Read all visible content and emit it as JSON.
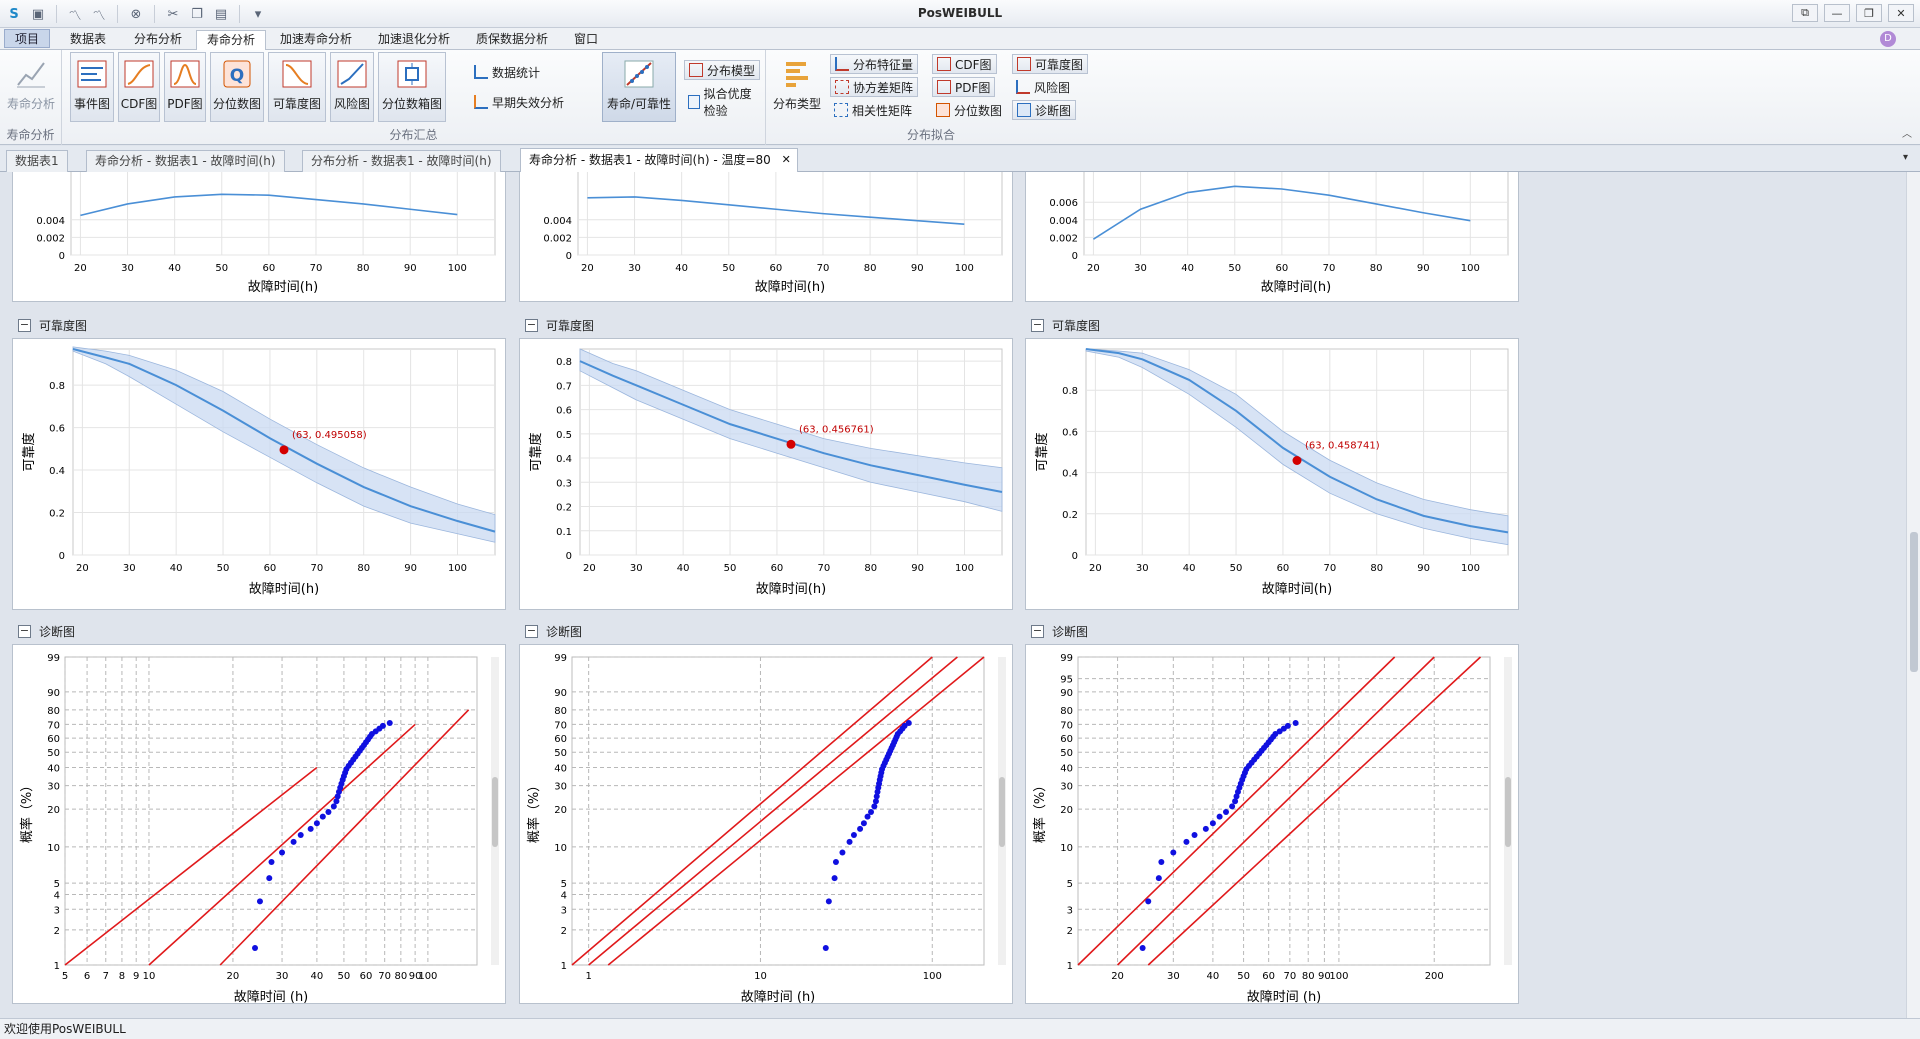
{
  "app": {
    "title": "PosWEIBULL"
  },
  "qat": {
    "icons": [
      "app-icon",
      "save-icon",
      "line-chart-icon",
      "line-chart2-icon",
      "cancel-icon",
      "cut-icon",
      "copy-icon",
      "paste-icon",
      "dropdown-icon"
    ]
  },
  "window": {
    "buttons": [
      "⧉",
      "—",
      "❐",
      "✕"
    ]
  },
  "menu": {
    "project": "项目",
    "tabs": [
      "数据表",
      "分布分析",
      "寿命分析",
      "加速寿命分析",
      "加速退化分析",
      "质保数据分析",
      "窗口"
    ]
  },
  "ribbon": {
    "groups": {
      "life": "寿命分析",
      "summary": "分布汇总",
      "fit": "分布拟合"
    },
    "life_btn": "寿命分析",
    "big_buttons": [
      "事件图",
      "CDF图",
      "PDF图",
      "分位数图",
      "可靠度图",
      "风险图",
      "分位数箱图"
    ],
    "data_stats": "数据统计",
    "early_failure": "早期失效分析",
    "life_reliability": "寿命/可靠性",
    "dist_model": "分布模型",
    "fit_test": "拟合优度检验",
    "dist_type": "分布类型",
    "dist_feature": "分布特征量",
    "cov_matrix": "协方差矩阵",
    "corr_matrix": "相关性矩阵",
    "cdf_plot": "CDF图",
    "pdf_plot": "PDF图",
    "quantile_plot": "分位数图",
    "reliability_plot": "可靠度图",
    "hazard_plot": "风险图",
    "diagnostic_plot": "诊断图"
  },
  "doc_tabs": [
    "数据表1",
    "寿命分析 - 数据表1 - 故障时间(h)",
    "分布分析 - 数据表1 - 故障时间(h)",
    "寿命分析 - 数据表1 - 故障时间(h) - 温度=80"
  ],
  "doc_close": "✕",
  "panels": {
    "reliability_title": "可靠度图",
    "diagnostic_title": "诊断图",
    "collapse": "−"
  },
  "axes": {
    "x_label": "故障时间(h)",
    "x_label_diag": "故障时间 (h)",
    "y_reliability": "可靠度",
    "y_prob": "概率（%）"
  },
  "chart_data": [
    {
      "type": "line",
      "panel": "pdf-col1",
      "x": [
        20,
        30,
        40,
        50,
        60,
        70,
        80,
        90,
        100
      ],
      "y_ticks": [
        "0",
        "0.002",
        "0.004"
      ],
      "series": [
        {
          "values": [
            0.0045,
            0.0058,
            0.0066,
            0.0069,
            0.0068,
            0.0063,
            0.0058,
            0.0052,
            0.0046
          ]
        }
      ],
      "xlim": [
        18,
        108
      ]
    },
    {
      "type": "line",
      "panel": "pdf-col2",
      "x": [
        20,
        30,
        40,
        50,
        60,
        70,
        80,
        90,
        100
      ],
      "y_ticks": [
        "0",
        "0.002",
        "0.004"
      ],
      "series": [
        {
          "values": [
            0.0065,
            0.0066,
            0.0062,
            0.0057,
            0.0052,
            0.0047,
            0.0043,
            0.0039,
            0.0035
          ]
        }
      ],
      "xlim": [
        18,
        108
      ]
    },
    {
      "type": "line",
      "panel": "pdf-col3",
      "x": [
        20,
        30,
        40,
        50,
        60,
        70,
        80,
        90,
        100
      ],
      "y_ticks": [
        "0",
        "0.002",
        "0.004",
        "0.006"
      ],
      "series": [
        {
          "values": [
            0.0018,
            0.0052,
            0.0071,
            0.0078,
            0.0075,
            0.0068,
            0.0058,
            0.0048,
            0.0039
          ]
        }
      ],
      "xlim": [
        18,
        108
      ]
    },
    {
      "type": "line",
      "panel": "rel-col1",
      "x": [
        18,
        25,
        30,
        40,
        50,
        60,
        70,
        80,
        90,
        100,
        108
      ],
      "y_ticks": [
        "0",
        "0.2",
        "0.4",
        "0.6",
        "0.8"
      ],
      "series": [
        {
          "values": [
            0.97,
            0.93,
            0.9,
            0.8,
            0.68,
            0.55,
            0.43,
            0.32,
            0.23,
            0.16,
            0.11
          ],
          "lower": [
            0.96,
            0.9,
            0.84,
            0.71,
            0.58,
            0.46,
            0.34,
            0.23,
            0.15,
            0.1,
            0.06
          ],
          "upper": [
            0.98,
            0.96,
            0.94,
            0.87,
            0.77,
            0.64,
            0.52,
            0.41,
            0.32,
            0.24,
            0.19
          ]
        }
      ],
      "annotation": {
        "x": 63,
        "y": 0.495058,
        "label": "(63, 0.495058)"
      },
      "xlim": [
        18,
        108
      ],
      "ylim": [
        0,
        0.97
      ]
    },
    {
      "type": "line",
      "panel": "rel-col2",
      "x": [
        18,
        25,
        30,
        40,
        50,
        60,
        70,
        80,
        90,
        100,
        108
      ],
      "y_ticks": [
        "0",
        "0.1",
        "0.2",
        "0.3",
        "0.4",
        "0.5",
        "0.6",
        "0.7",
        "0.8"
      ],
      "series": [
        {
          "values": [
            0.8,
            0.74,
            0.7,
            0.62,
            0.54,
            0.48,
            0.42,
            0.37,
            0.33,
            0.29,
            0.26
          ],
          "lower": [
            0.76,
            0.69,
            0.64,
            0.56,
            0.48,
            0.42,
            0.36,
            0.3,
            0.26,
            0.22,
            0.18
          ],
          "upper": [
            0.85,
            0.79,
            0.76,
            0.68,
            0.6,
            0.54,
            0.48,
            0.44,
            0.41,
            0.38,
            0.36
          ]
        }
      ],
      "annotation": {
        "x": 63,
        "y": 0.456761,
        "label": "(63, 0.456761)"
      },
      "xlim": [
        18,
        108
      ],
      "ylim": [
        0,
        0.85
      ]
    },
    {
      "type": "line",
      "panel": "rel-col3",
      "x": [
        18,
        25,
        30,
        40,
        50,
        60,
        70,
        80,
        90,
        100,
        108
      ],
      "y_ticks": [
        "0",
        "0.2",
        "0.4",
        "0.6",
        "0.8"
      ],
      "series": [
        {
          "values": [
            1.0,
            0.98,
            0.95,
            0.85,
            0.7,
            0.52,
            0.38,
            0.27,
            0.19,
            0.14,
            0.11
          ],
          "lower": [
            0.99,
            0.96,
            0.91,
            0.78,
            0.62,
            0.44,
            0.3,
            0.2,
            0.13,
            0.08,
            0.05
          ],
          "upper": [
            1.0,
            0.99,
            0.98,
            0.9,
            0.78,
            0.6,
            0.46,
            0.35,
            0.27,
            0.22,
            0.19
          ]
        }
      ],
      "annotation": {
        "x": 63,
        "y": 0.458741,
        "label": "(63, 0.458741)"
      },
      "xlim": [
        18,
        108
      ],
      "ylim": [
        0,
        1.0
      ]
    },
    {
      "type": "scatter",
      "panel": "diag-col1",
      "x_ticks": [
        "5",
        "6",
        "7",
        "8",
        "9",
        "10",
        "20",
        "30",
        "40",
        "50",
        "60",
        "70",
        "80",
        "90",
        "100"
      ],
      "y_ticks": [
        "1",
        "2",
        "3",
        "4",
        "5",
        "10",
        "20",
        "30",
        "40",
        "50",
        "60",
        "70",
        "80",
        "90",
        "99"
      ],
      "xlim": [
        5,
        150
      ],
      "ylim": [
        1,
        99
      ],
      "points": [
        [
          24,
          1.4
        ],
        [
          25,
          3.5
        ],
        [
          27,
          5.5
        ],
        [
          27.5,
          7.5
        ],
        [
          30,
          9
        ],
        [
          33,
          11
        ],
        [
          35,
          12.5
        ],
        [
          38,
          14
        ],
        [
          40,
          15.5
        ],
        [
          42,
          17.5
        ],
        [
          44,
          19
        ],
        [
          46,
          21
        ],
        [
          47,
          23
        ],
        [
          47.5,
          25
        ],
        [
          48,
          27
        ],
        [
          48.5,
          29
        ],
        [
          49,
          31
        ],
        [
          49.5,
          33
        ],
        [
          50,
          35
        ],
        [
          50.5,
          37
        ],
        [
          51,
          39
        ],
        [
          52,
          41
        ],
        [
          53,
          43
        ],
        [
          54,
          45
        ],
        [
          55,
          47
        ],
        [
          56,
          49
        ],
        [
          57,
          51
        ],
        [
          58,
          53
        ],
        [
          59,
          55
        ],
        [
          60,
          57
        ],
        [
          61,
          59
        ],
        [
          62,
          61
        ],
        [
          63,
          63
        ],
        [
          65,
          65
        ],
        [
          67,
          67
        ],
        [
          69,
          69
        ],
        [
          73,
          71
        ]
      ],
      "lines": [
        [
          [
            5,
            1
          ],
          [
            40,
            40
          ]
        ],
        [
          [
            10,
            1
          ],
          [
            90,
            70
          ]
        ],
        [
          [
            18,
            1
          ],
          [
            140,
            80
          ]
        ]
      ]
    },
    {
      "type": "scatter",
      "panel": "diag-col2",
      "x_ticks": [
        "1",
        "10",
        "100"
      ],
      "y_ticks": [
        "1",
        "2",
        "3",
        "4",
        "5",
        "10",
        "20",
        "30",
        "40",
        "50",
        "60",
        "70",
        "80",
        "90",
        "99"
      ],
      "xlim": [
        0.8,
        200
      ],
      "ylim": [
        1,
        99
      ],
      "points": [
        [
          24,
          1.4
        ],
        [
          25,
          3.5
        ],
        [
          27,
          5.5
        ],
        [
          27.5,
          7.5
        ],
        [
          30,
          9
        ],
        [
          33,
          11
        ],
        [
          35,
          12.5
        ],
        [
          38,
          14
        ],
        [
          40,
          15.5
        ],
        [
          42,
          17.5
        ],
        [
          44,
          19
        ],
        [
          46,
          21
        ],
        [
          47,
          23
        ],
        [
          47.5,
          25
        ],
        [
          48,
          27
        ],
        [
          48.5,
          29
        ],
        [
          49,
          31
        ],
        [
          49.5,
          33
        ],
        [
          50,
          35
        ],
        [
          50.5,
          37
        ],
        [
          51,
          39
        ],
        [
          52,
          41
        ],
        [
          53,
          43
        ],
        [
          54,
          45
        ],
        [
          55,
          47
        ],
        [
          56,
          49
        ],
        [
          57,
          51
        ],
        [
          58,
          53
        ],
        [
          59,
          55
        ],
        [
          60,
          57
        ],
        [
          61,
          59
        ],
        [
          62,
          61
        ],
        [
          63,
          63
        ],
        [
          65,
          65
        ],
        [
          67,
          67
        ],
        [
          69,
          69
        ],
        [
          73,
          71
        ]
      ],
      "lines": [
        [
          [
            0.8,
            1
          ],
          [
            100,
            99
          ]
        ],
        [
          [
            1,
            1
          ],
          [
            140,
            99
          ]
        ],
        [
          [
            1.3,
            1
          ],
          [
            200,
            99
          ]
        ]
      ]
    },
    {
      "type": "scatter",
      "panel": "diag-col3",
      "x_ticks": [
        "20",
        "30",
        "40",
        "50",
        "60",
        "70",
        "80",
        "90",
        "100",
        "200"
      ],
      "y_ticks": [
        "1",
        "2",
        "3",
        "5",
        "10",
        "20",
        "30",
        "40",
        "50",
        "60",
        "70",
        "80",
        "90",
        "95",
        "99"
      ],
      "xlim": [
        15,
        300
      ],
      "ylim": [
        1,
        99
      ],
      "points": [
        [
          24,
          1.4
        ],
        [
          25,
          3.5
        ],
        [
          27,
          5.5
        ],
        [
          27.5,
          7.5
        ],
        [
          30,
          9
        ],
        [
          33,
          11
        ],
        [
          35,
          12.5
        ],
        [
          38,
          14
        ],
        [
          40,
          15.5
        ],
        [
          42,
          17.5
        ],
        [
          44,
          19
        ],
        [
          46,
          21
        ],
        [
          47,
          23
        ],
        [
          47.5,
          25
        ],
        [
          48,
          27
        ],
        [
          48.5,
          29
        ],
        [
          49,
          31
        ],
        [
          49.5,
          33
        ],
        [
          50,
          35
        ],
        [
          50.5,
          37
        ],
        [
          51,
          39
        ],
        [
          52,
          41
        ],
        [
          53,
          43
        ],
        [
          54,
          45
        ],
        [
          55,
          47
        ],
        [
          56,
          49
        ],
        [
          57,
          51
        ],
        [
          58,
          53
        ],
        [
          59,
          55
        ],
        [
          60,
          57
        ],
        [
          61,
          59
        ],
        [
          62,
          61
        ],
        [
          63,
          63
        ],
        [
          65,
          65
        ],
        [
          67,
          67
        ],
        [
          69,
          69
        ],
        [
          73,
          71
        ]
      ],
      "lines": [
        [
          [
            15,
            1
          ],
          [
            150,
            99
          ]
        ],
        [
          [
            20,
            1
          ],
          [
            200,
            99
          ]
        ],
        [
          [
            25,
            1
          ],
          [
            280,
            99
          ]
        ]
      ]
    }
  ],
  "status": {
    "text": "欢迎使用PosWEIBULL"
  }
}
